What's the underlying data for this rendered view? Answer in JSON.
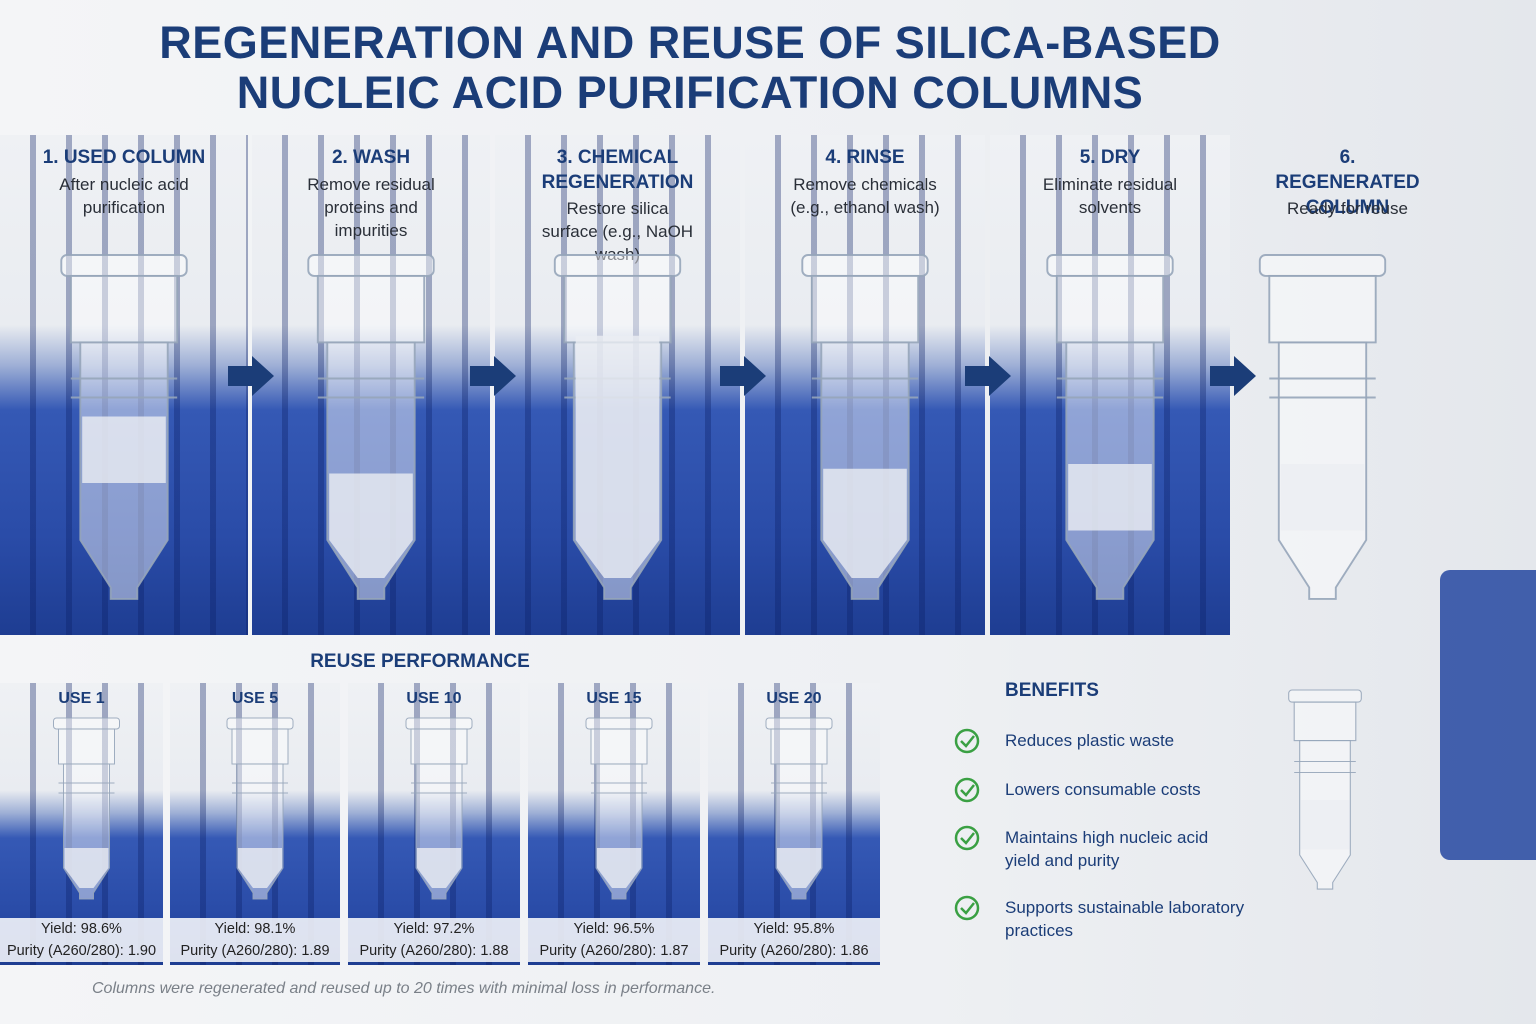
{
  "header": {
    "title_lines": [
      "REGENERATION AND REUSE OF SILICA-BASED",
      "NUCLEIC ACID PURIFICATION COLUMNS"
    ]
  },
  "steps": [
    {
      "title": "1. USED COLUMN",
      "description": "After nucleic acid purification"
    },
    {
      "title": "2. WASH",
      "description": "Remove residual proteins and impurities"
    },
    {
      "title": "3. CHEMICAL REGENERATION",
      "description": "Restore silica surface (e.g., NaOH wash)"
    },
    {
      "title": "4. RINSE",
      "description": "Remove chemicals (e.g., ethanol wash)"
    },
    {
      "title": "5. DRY",
      "description": "Eliminate residual solvents"
    },
    {
      "title": "6. REGENERATED COLUMN",
      "description": "Ready for reuse"
    }
  ],
  "reuse": {
    "title": "REUSE PERFORMANCE",
    "uses": [
      {
        "label": "USE 1",
        "yield": "Yield: 98.6%",
        "purity": "Purity (A260/280): 1.90"
      },
      {
        "label": "USE 5",
        "yield": "Yield: 98.1%",
        "purity": "Purity (A260/280): 1.89"
      },
      {
        "label": "USE 10",
        "yield": "Yield: 97.2%",
        "purity": "Purity (A260/280): 1.88"
      },
      {
        "label": "USE 15",
        "yield": "Yield: 96.5%",
        "purity": "Purity (A260/280): 1.87"
      },
      {
        "label": "USE 20",
        "yield": "Yield: 95.8%",
        "purity": "Purity (A260/280): 1.86"
      }
    ]
  },
  "benefits": {
    "title": "BENEFITS",
    "items": [
      "Reduces plastic waste",
      "Lowers consumable costs",
      "Maintains high nucleic acid yield and purity",
      "Supports sustainable laboratory practices"
    ]
  },
  "footnote": "Columns were regenerated and reused up to 20 times with minimal loss in performance."
}
